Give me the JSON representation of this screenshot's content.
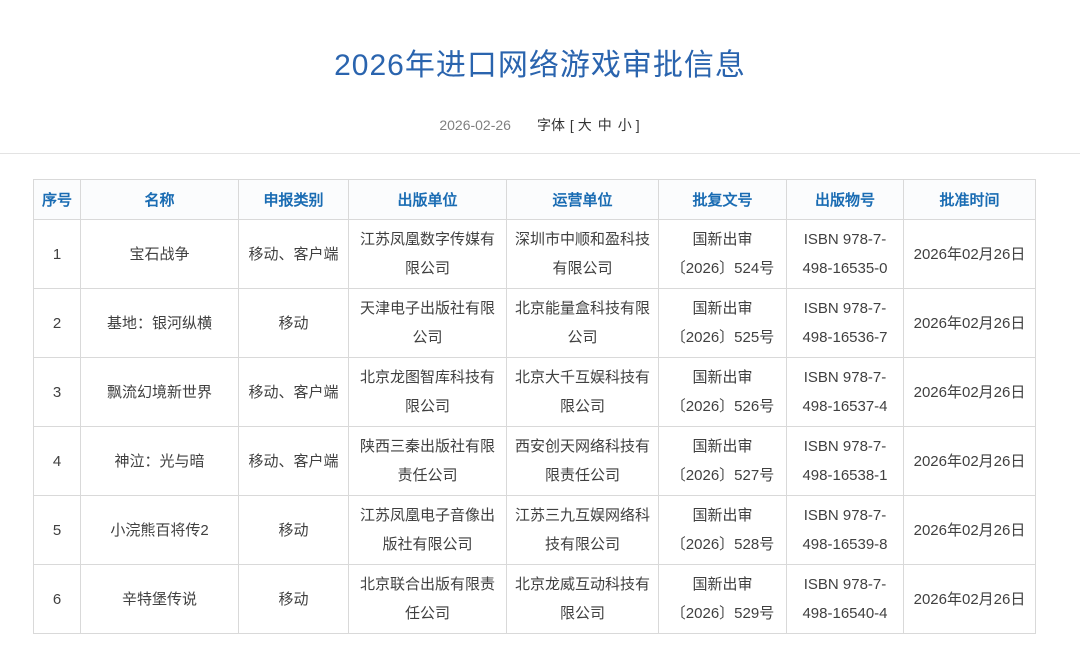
{
  "page": {
    "title": "2026年进口网络游戏审批信息",
    "publish_date": "2026-02-26",
    "font_control": {
      "label": "字体",
      "open_bracket": "[",
      "options": [
        "大",
        "中",
        "小"
      ],
      "close_bracket": "]"
    }
  },
  "colors": {
    "title_blue": "#2a64ae",
    "header_blue": "#1a6cb3",
    "body_text": "#404040",
    "border": "#d9d9d9"
  },
  "table": {
    "headers": [
      "序号",
      "名称",
      "申报类别",
      "出版单位",
      "运营单位",
      "批复文号",
      "出版物号",
      "批准时间"
    ],
    "column_keys": [
      "no",
      "name",
      "category",
      "publisher",
      "operator",
      "approval_no",
      "isbn",
      "approval_date"
    ],
    "rows": [
      {
        "no": "1",
        "name": "宝石战争",
        "category": "移动、客户端",
        "publisher": "江苏凤凰数字传媒有\n限公司",
        "operator": "深圳市中顺和盈科技\n有限公司",
        "approval_no": "国新出审\n〔2026〕524号",
        "isbn": "ISBN 978-7-\n498-16535-0",
        "approval_date": "2026年02月26日"
      },
      {
        "no": "2",
        "name": "基地：银河纵横",
        "category": "移动",
        "publisher": "天津电子出版社有限\n公司",
        "operator": "北京能量盒科技有限\n公司",
        "approval_no": "国新出审\n〔2026〕525号",
        "isbn": "ISBN 978-7-\n498-16536-7",
        "approval_date": "2026年02月26日"
      },
      {
        "no": "3",
        "name": "飘流幻境新世界",
        "category": "移动、客户端",
        "publisher": "北京龙图智库科技有\n限公司",
        "operator": "北京大千互娱科技有\n限公司",
        "approval_no": "国新出审\n〔2026〕526号",
        "isbn": "ISBN 978-7-\n498-16537-4",
        "approval_date": "2026年02月26日"
      },
      {
        "no": "4",
        "name": "神泣：光与暗",
        "category": "移动、客户端",
        "publisher": "陕西三秦出版社有限\n责任公司",
        "operator": "西安创天网络科技有\n限责任公司",
        "approval_no": "国新出审\n〔2026〕527号",
        "isbn": "ISBN 978-7-\n498-16538-1",
        "approval_date": "2026年02月26日"
      },
      {
        "no": "5",
        "name": "小浣熊百将传2",
        "category": "移动",
        "publisher": "江苏凤凰电子音像出\n版社有限公司",
        "operator": "江苏三九互娱网络科\n技有限公司",
        "approval_no": "国新出审\n〔2026〕528号",
        "isbn": "ISBN 978-7-\n498-16539-8",
        "approval_date": "2026年02月26日"
      },
      {
        "no": "6",
        "name": "辛特堡传说",
        "category": "移动",
        "publisher": "北京联合出版有限责\n任公司",
        "operator": "北京龙威互动科技有\n限公司",
        "approval_no": "国新出审\n〔2026〕529号",
        "isbn": "ISBN 978-7-\n498-16540-4",
        "approval_date": "2026年02月26日"
      }
    ]
  }
}
